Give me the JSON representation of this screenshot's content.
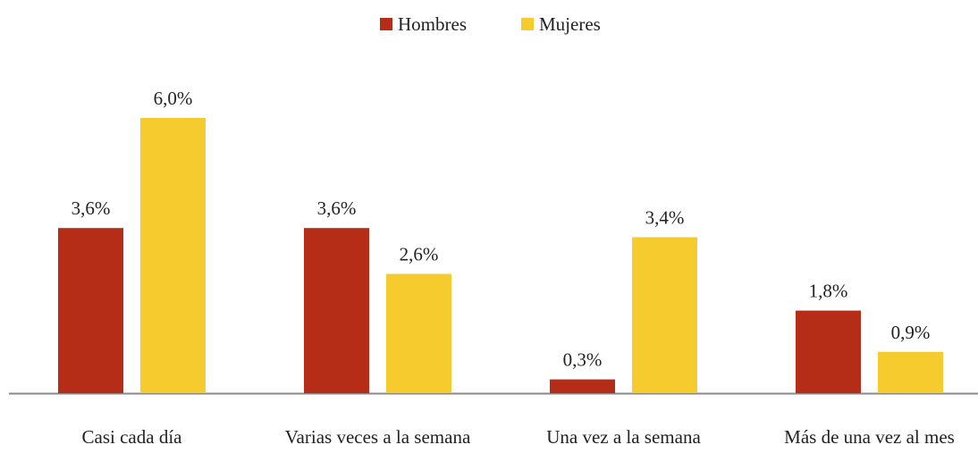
{
  "chart_data": {
    "type": "bar",
    "categories": [
      "Casi cada día",
      "Varias veces a la semana",
      "Una vez a la semana",
      "Más de una vez al mes"
    ],
    "series": [
      {
        "name": "Hombres",
        "color": "#b52d17",
        "values": [
          3.6,
          3.6,
          0.3,
          1.8
        ],
        "value_labels": [
          "3,6%",
          "3,6%",
          "0,3%",
          "1,8%"
        ]
      },
      {
        "name": "Mujeres",
        "color": "#f5cb2e",
        "values": [
          6.0,
          2.6,
          3.4,
          0.9
        ],
        "value_labels": [
          "6,0%",
          "2,6%",
          "3,4%",
          "0,9%"
        ]
      }
    ],
    "legend": "top"
  }
}
